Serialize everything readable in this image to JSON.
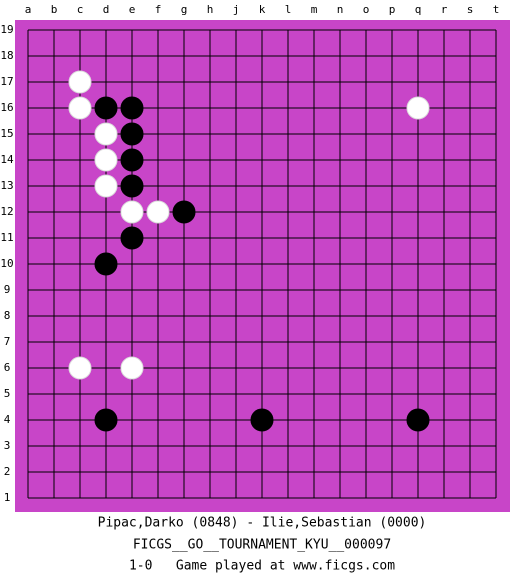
{
  "columns": [
    "a",
    "b",
    "c",
    "d",
    "e",
    "f",
    "g",
    "h",
    "j",
    "k",
    "l",
    "m",
    "n",
    "o",
    "p",
    "q",
    "r",
    "s",
    "t"
  ],
  "rows": [
    19,
    18,
    17,
    16,
    15,
    14,
    13,
    12,
    11,
    10,
    9,
    8,
    7,
    6,
    5,
    4,
    3,
    2,
    1
  ],
  "stones": [
    {
      "color": "white",
      "col": "c",
      "row": 17
    },
    {
      "color": "white",
      "col": "c",
      "row": 16
    },
    {
      "color": "black",
      "col": "d",
      "row": 16
    },
    {
      "color": "black",
      "col": "e",
      "row": 16
    },
    {
      "color": "white",
      "col": "q",
      "row": 16
    },
    {
      "color": "white",
      "col": "d",
      "row": 15
    },
    {
      "color": "black",
      "col": "e",
      "row": 15
    },
    {
      "color": "white",
      "col": "d",
      "row": 14
    },
    {
      "color": "black",
      "col": "e",
      "row": 14
    },
    {
      "color": "white",
      "col": "d",
      "row": 13
    },
    {
      "color": "black",
      "col": "e",
      "row": 13
    },
    {
      "color": "white",
      "col": "e",
      "row": 12
    },
    {
      "color": "white",
      "col": "f",
      "row": 12
    },
    {
      "color": "black",
      "col": "g",
      "row": 12
    },
    {
      "color": "black",
      "col": "e",
      "row": 11
    },
    {
      "color": "black",
      "col": "d",
      "row": 10
    },
    {
      "color": "white",
      "col": "c",
      "row": 6
    },
    {
      "color": "white",
      "col": "e",
      "row": 6
    },
    {
      "color": "black",
      "col": "d",
      "row": 4
    },
    {
      "color": "black",
      "col": "k",
      "row": 4
    },
    {
      "color": "black",
      "col": "q",
      "row": 4
    }
  ],
  "footer": {
    "players": "Pipac,Darko (0848) - Ilie,Sebastian (0000)",
    "event": "FICGS__GO__TOURNAMENT_KYU__000097",
    "result": "1-0   Game played at www.ficgs.com"
  }
}
